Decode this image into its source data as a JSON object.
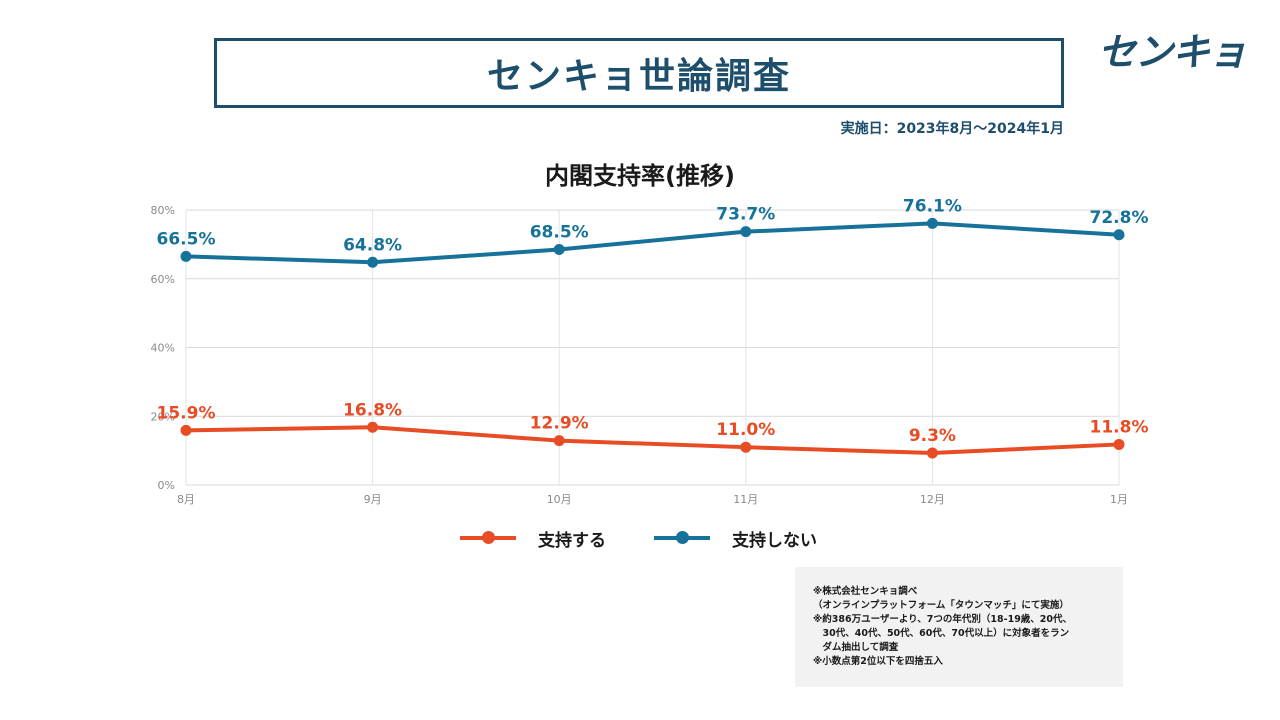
{
  "header": {
    "title": "センキョ世論調査",
    "logo": "センキョ",
    "date": "実施日：2023年8月～2024年1月"
  },
  "colors": {
    "brand": "#1d4e6b",
    "support": "#e84c25",
    "no_support": "#17729a"
  },
  "chart_data": {
    "type": "line",
    "title": "内閣支持率(推移)",
    "categories": [
      "8月",
      "9月",
      "10月",
      "11月",
      "12月",
      "1月"
    ],
    "ylim": [
      0,
      80
    ],
    "yticks": [
      "0%",
      "20%",
      "40%",
      "60%",
      "80%"
    ],
    "grid": true,
    "legend_position": "bottom",
    "series": [
      {
        "name": "支持する",
        "color": "#e84c25",
        "values": [
          15.9,
          16.8,
          12.9,
          11.0,
          9.3,
          11.8
        ],
        "labels": [
          "15.9%",
          "16.8%",
          "12.9%",
          "11.0%",
          "9.3%",
          "11.8%"
        ]
      },
      {
        "name": "支持しない",
        "color": "#17729a",
        "values": [
          66.5,
          64.8,
          68.5,
          73.7,
          76.1,
          72.8
        ],
        "labels": [
          "66.5%",
          "64.8%",
          "68.5%",
          "73.7%",
          "76.1%",
          "72.8%"
        ]
      }
    ]
  },
  "notes": [
    "※株式会社センキョ調べ",
    "（オンラインプラットフォーム「タウンマッチ」にて実施）",
    "※約386万ユーザーより、7つの年代別（18-19歳、20代、",
    "　30代、40代、50代、60代、70代以上）に対象者をラン",
    "　ダム抽出して調査",
    "※小数点第2位以下を四捨五入"
  ]
}
